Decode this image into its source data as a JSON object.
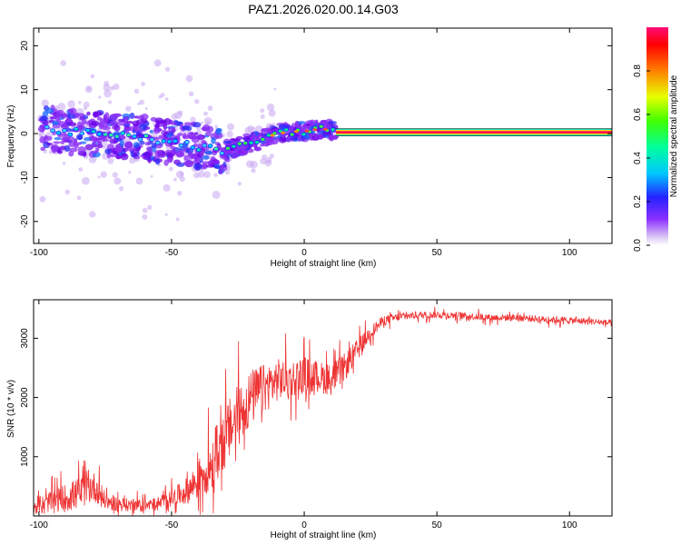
{
  "title": "PAZ1.2026.020.00.14.G03",
  "chart_data": [
    {
      "type": "heatmap",
      "xlabel": "Height of straight line (km)",
      "ylabel": "Frequency (Hz)",
      "xlim": [
        -102,
        116
      ],
      "ylim": [
        -25,
        24
      ],
      "xticks": [
        -100,
        -50,
        0,
        50,
        100
      ],
      "yticks": [
        -20,
        -10,
        0,
        10,
        20
      ],
      "colorbar": {
        "label": "Normalized spectral amplitude",
        "range": [
          0,
          1
        ],
        "ticks": [
          "0.0",
          "0.2",
          "0.4",
          "0.6",
          "0.8"
        ]
      },
      "ridge": {
        "x": [
          -100,
          -90,
          -80,
          -70,
          -60,
          -50,
          -40,
          -30,
          -25,
          -20,
          -15,
          -10,
          -5,
          0,
          5,
          10,
          12,
          116
        ],
        "freq": [
          1.5,
          0.5,
          0,
          -0.5,
          -1,
          -2,
          -3,
          -4,
          -3,
          -2,
          -1,
          0,
          0.5,
          0.5,
          1,
          1,
          0.3,
          0.3
        ]
      },
      "steady_line": {
        "x_start": 12,
        "x_end": 116,
        "freq": 0.3
      }
    },
    {
      "type": "line",
      "xlabel": "Height of straight line (km)",
      "ylabel": "SNR (10 * v/v)",
      "xlim": [
        -102,
        116
      ],
      "ylim": [
        0,
        3650
      ],
      "xticks": [
        -100,
        -50,
        0,
        50,
        100
      ],
      "yticks": [
        1000,
        2000,
        3000
      ],
      "series": [
        {
          "name": "SNR",
          "color": "#ee3333",
          "x": [
            -102,
            -95,
            -90,
            -85,
            -80,
            -78,
            -75,
            -70,
            -65,
            -60,
            -55,
            -50,
            -45,
            -40,
            -35,
            -30,
            -25,
            -20,
            -15,
            -10,
            -5,
            0,
            5,
            10,
            15,
            20,
            25,
            30,
            35,
            40,
            50,
            60,
            70,
            80,
            90,
            100,
            110,
            116
          ],
          "mean": [
            150,
            250,
            300,
            380,
            500,
            450,
            250,
            200,
            180,
            170,
            200,
            300,
            400,
            600,
            900,
            1300,
            1700,
            2000,
            2150,
            2300,
            2300,
            2400,
            2350,
            2300,
            2500,
            2800,
            3100,
            3300,
            3350,
            3380,
            3400,
            3380,
            3350,
            3350,
            3320,
            3300,
            3280,
            3250
          ],
          "spread": [
            200,
            300,
            400,
            450,
            450,
            400,
            250,
            200,
            180,
            180,
            200,
            250,
            350,
            550,
            800,
            900,
            900,
            800,
            700,
            600,
            550,
            500,
            450,
            450,
            400,
            300,
            200,
            150,
            120,
            100,
            100,
            100,
            100,
            100,
            100,
            100,
            90,
            90
          ]
        }
      ]
    }
  ]
}
